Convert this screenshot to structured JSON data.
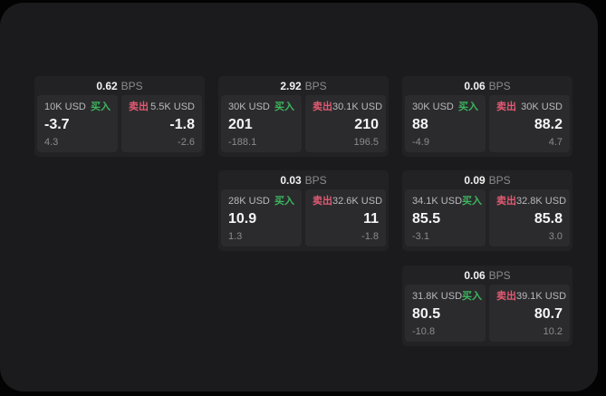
{
  "labels": {
    "bps": "BPS",
    "buy": "买入",
    "sell": "卖出"
  },
  "colors": {
    "outer_background": "#030303",
    "panel_background": "#1b1b1d",
    "card_background": "#222224",
    "cell_background": "#2b2b2d",
    "buy_green": "#3cb55e",
    "sell_red": "#e25a72",
    "primary_text": "#f5f5f6",
    "muted_text": "#8b8b8f"
  },
  "cards": [
    {
      "bps": "0.62",
      "buy": {
        "size": "10K USD",
        "value": "-3.7",
        "sub": "4.3"
      },
      "sell": {
        "size": "5.5K USD",
        "value": "-1.8",
        "sub": "-2.6"
      }
    },
    {
      "bps": "2.92",
      "buy": {
        "size": "30K USD",
        "value": "201",
        "sub": "-188.1"
      },
      "sell": {
        "size": "30.1K USD",
        "value": "210",
        "sub": "196.5"
      }
    },
    {
      "bps": "0.06",
      "buy": {
        "size": "30K USD",
        "value": "88",
        "sub": "-4.9"
      },
      "sell": {
        "size": "30K USD",
        "value": "88.2",
        "sub": "4.7"
      }
    },
    {
      "bps": "0.03",
      "buy": {
        "size": "28K USD",
        "value": "10.9",
        "sub": "1.3"
      },
      "sell": {
        "size": "32.6K USD",
        "value": "11",
        "sub": "-1.8"
      }
    },
    {
      "bps": "0.09",
      "buy": {
        "size": "34.1K USD",
        "value": "85.5",
        "sub": "-3.1"
      },
      "sell": {
        "size": "32.8K USD",
        "value": "85.8",
        "sub": "3.0"
      }
    },
    {
      "bps": "0.06",
      "buy": {
        "size": "31.8K USD",
        "value": "80.5",
        "sub": "-10.8"
      },
      "sell": {
        "size": "39.1K USD",
        "value": "80.7",
        "sub": "10.2"
      }
    }
  ]
}
